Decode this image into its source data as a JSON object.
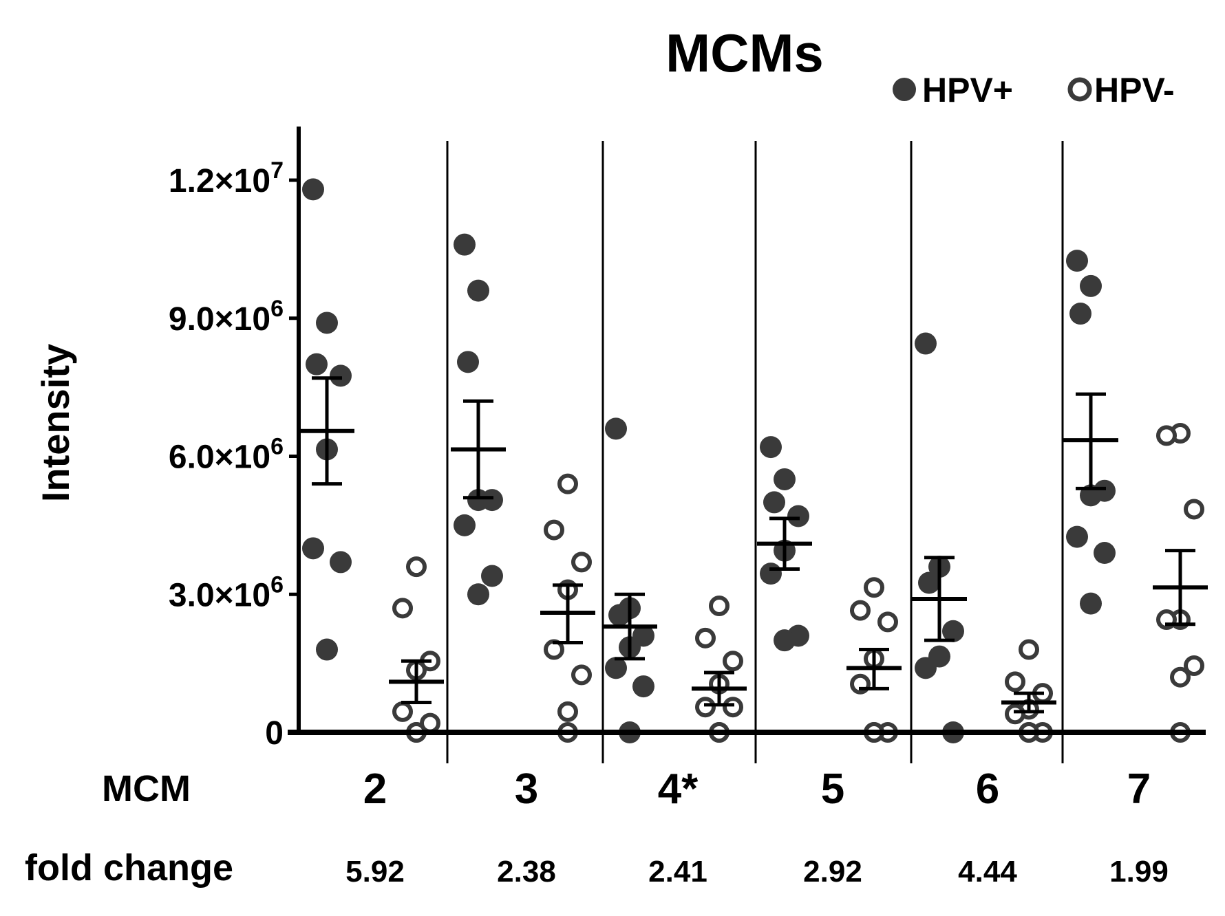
{
  "chart_data": {
    "type": "scatter",
    "title": "MCMs",
    "ylabel": "Intensity",
    "ylim": [
      0,
      13000000
    ],
    "yticks": [
      {
        "value": 0,
        "mant": "0",
        "exp": ""
      },
      {
        "value": 3000000,
        "mant": "3.0×10",
        "exp": "6"
      },
      {
        "value": 6000000,
        "mant": "6.0×10",
        "exp": "6"
      },
      {
        "value": 9000000,
        "mant": "9.0×10",
        "exp": "6"
      },
      {
        "value": 12000000,
        "mant": "1.2×10",
        "exp": "7"
      }
    ],
    "category_row_label": "MCM",
    "fold_row_label": "fold change",
    "legend": [
      {
        "name": "HPV+",
        "style": "filled"
      },
      {
        "name": "HPV-",
        "style": "open"
      }
    ],
    "categories": [
      "2",
      "3",
      "4*",
      "5",
      "6",
      "7"
    ],
    "fold_change": [
      "5.92",
      "2.38",
      "2.41",
      "2.92",
      "4.44",
      "1.99"
    ],
    "groups": [
      {
        "category": "2",
        "hpv_pos": {
          "mean": 6550000,
          "sem_low": 5400000,
          "sem_high": 7700000,
          "points": [
            11800000,
            8900000,
            8000000,
            7750000,
            6150000,
            4000000,
            3700000,
            1800000
          ]
        },
        "hpv_neg": {
          "mean": 1100000,
          "sem_low": 650000,
          "sem_high": 1550000,
          "points": [
            3600000,
            2700000,
            1550000,
            1350000,
            450000,
            200000,
            0,
            0
          ]
        }
      },
      {
        "category": "3",
        "hpv_pos": {
          "mean": 6150000,
          "sem_low": 5100000,
          "sem_high": 7200000,
          "points": [
            10600000,
            9600000,
            8050000,
            5050000,
            5050000,
            4500000,
            3400000,
            3000000
          ]
        },
        "hpv_neg": {
          "mean": 2600000,
          "sem_low": 1950000,
          "sem_high": 3200000,
          "points": [
            5400000,
            4400000,
            3700000,
            3100000,
            1800000,
            1250000,
            450000,
            0
          ]
        }
      },
      {
        "category": "4*",
        "hpv_pos": {
          "mean": 2300000,
          "sem_low": 1600000,
          "sem_high": 3000000,
          "points": [
            6600000,
            2700000,
            2550000,
            2100000,
            1850000,
            1400000,
            1000000,
            0
          ]
        },
        "hpv_neg": {
          "mean": 950000,
          "sem_low": 600000,
          "sem_high": 1300000,
          "points": [
            2750000,
            2050000,
            1550000,
            1050000,
            550000,
            550000,
            0,
            0
          ]
        }
      },
      {
        "category": "5",
        "hpv_pos": {
          "mean": 4100000,
          "sem_low": 3550000,
          "sem_high": 4650000,
          "points": [
            6200000,
            5500000,
            5000000,
            4700000,
            3950000,
            3450000,
            2100000,
            2000000
          ]
        },
        "hpv_neg": {
          "mean": 1400000,
          "sem_low": 950000,
          "sem_high": 1800000,
          "points": [
            3150000,
            2650000,
            2400000,
            1600000,
            1050000,
            0,
            0,
            0
          ]
        }
      },
      {
        "category": "6",
        "hpv_pos": {
          "mean": 2900000,
          "sem_low": 2000000,
          "sem_high": 3800000,
          "points": [
            8450000,
            3600000,
            3250000,
            2200000,
            1650000,
            1400000,
            0
          ]
        },
        "hpv_neg": {
          "mean": 650000,
          "sem_low": 450000,
          "sem_high": 850000,
          "points": [
            1800000,
            1100000,
            850000,
            500000,
            400000,
            0,
            0,
            0
          ]
        }
      },
      {
        "category": "7",
        "hpv_pos": {
          "mean": 6350000,
          "sem_low": 5300000,
          "sem_high": 7350000,
          "points": [
            10250000,
            9700000,
            9100000,
            5250000,
            5150000,
            4250000,
            3900000,
            2800000
          ]
        },
        "hpv_neg": {
          "mean": 3150000,
          "sem_low": 2350000,
          "sem_high": 3950000,
          "points": [
            6500000,
            6450000,
            4850000,
            2450000,
            2450000,
            1450000,
            1200000,
            0
          ]
        }
      }
    ]
  }
}
